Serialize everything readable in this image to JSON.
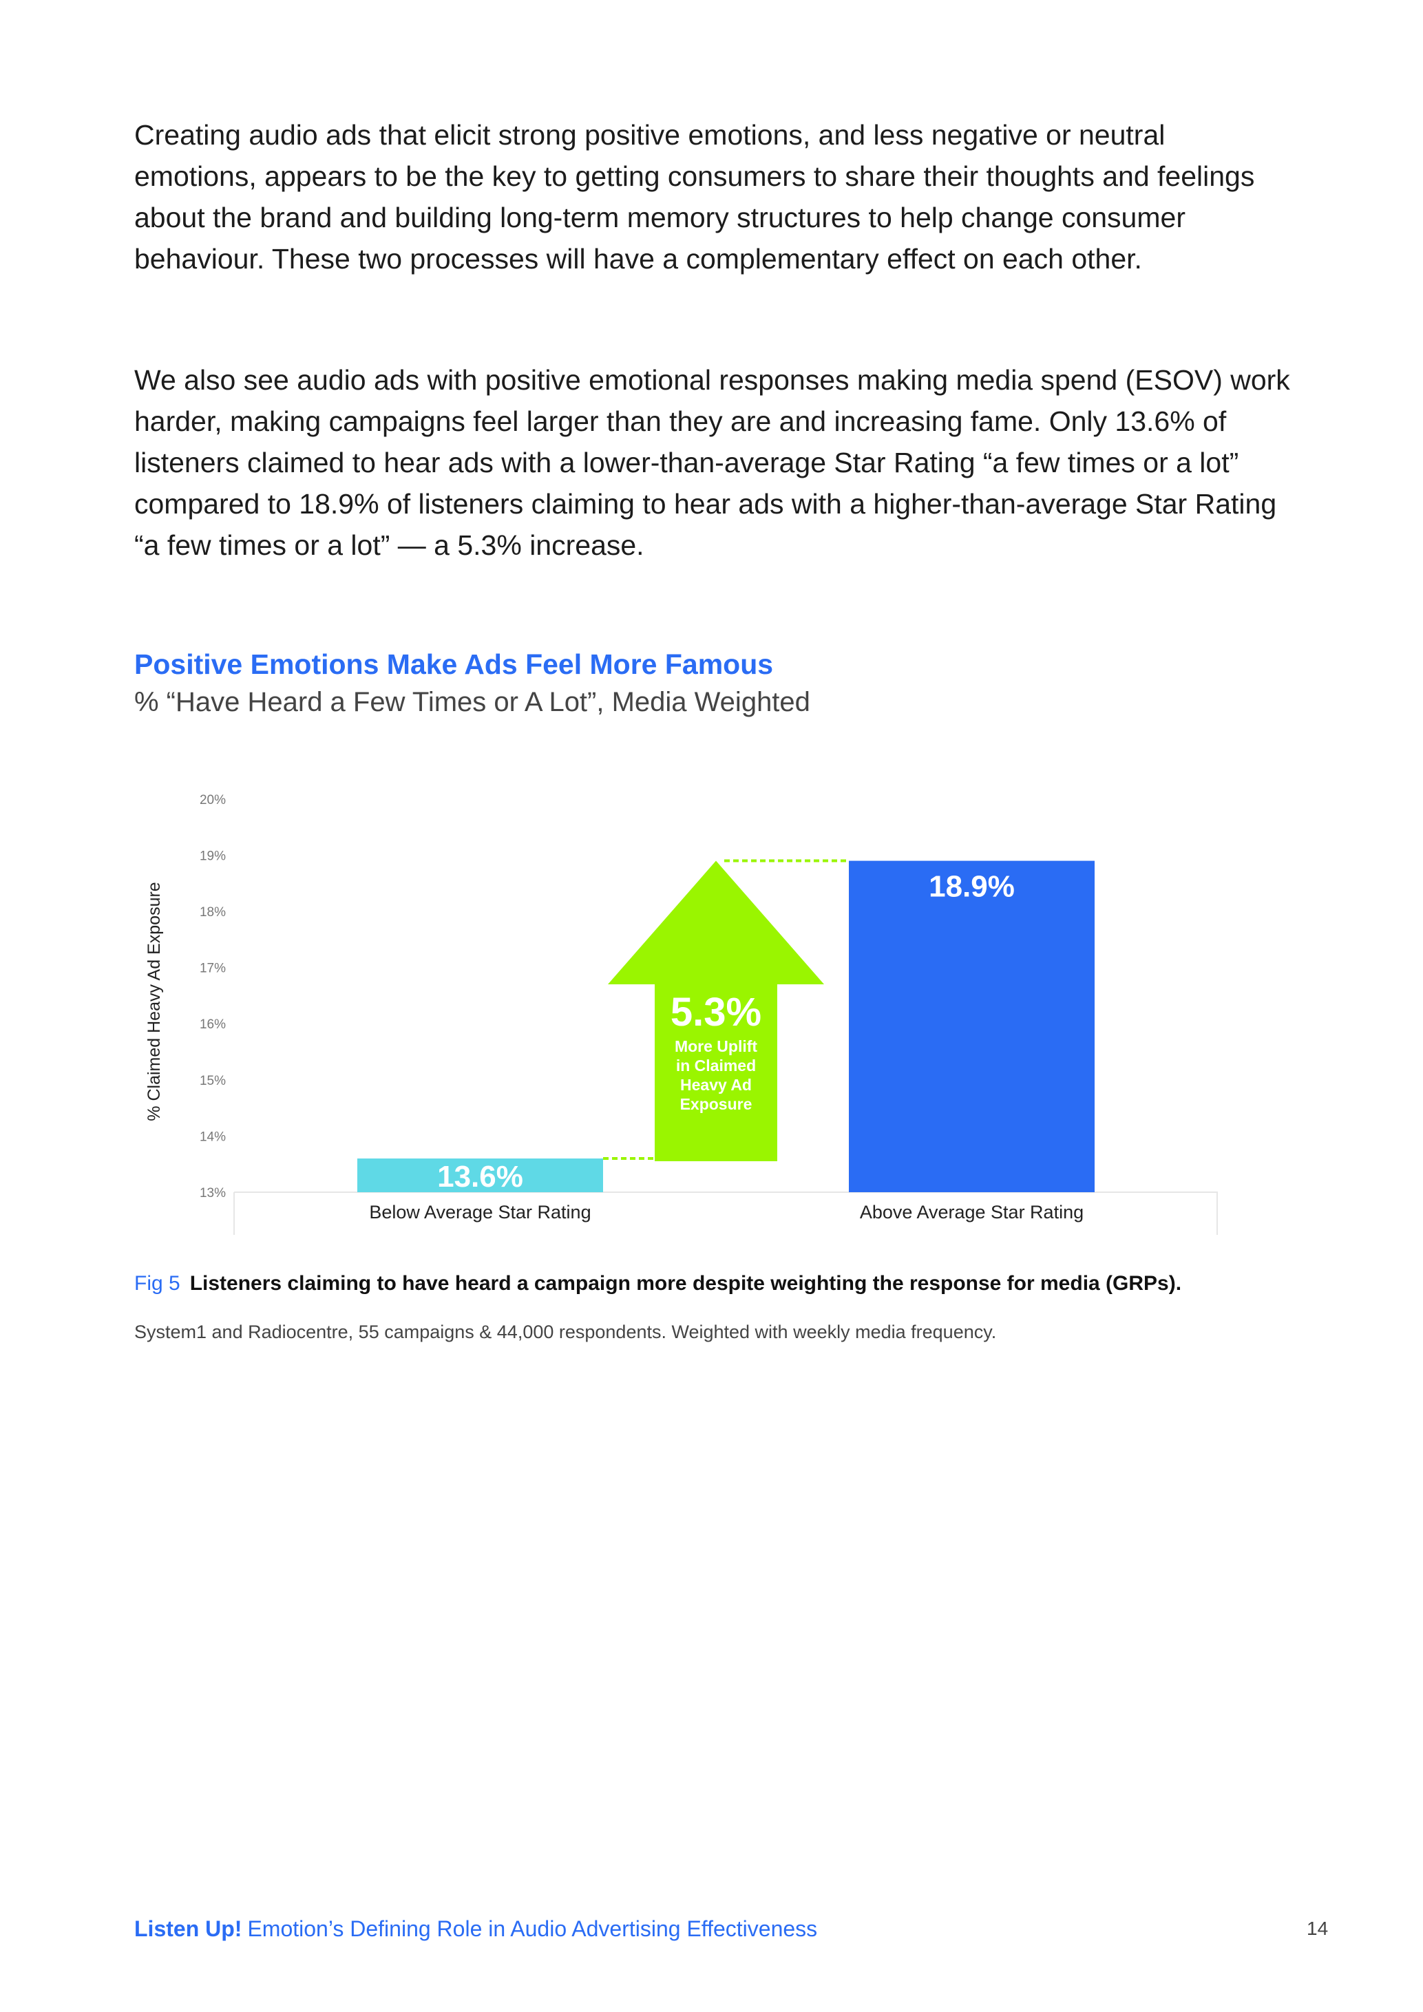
{
  "body": {
    "paragraph1": "Creating audio ads that elicit strong positive emotions, and less negative or neutral emotions, appears to be the key to getting consumers to share their thoughts and feelings about the brand and building long-term memory structures to help change consumer behaviour. These two processes will have a complementary effect on each other.",
    "paragraph2": "We also see audio ads with positive emotional responses making media spend (ESOV) work harder, making campaigns feel larger than they are and increasing fame. Only 13.6% of listeners claimed to hear ads with a lower-than-average Star Rating “a few times or a lot” compared to 18.9% of listeners claiming to hear ads with a higher-than-average Star Rating “a few times or a lot” — a 5.3% increase."
  },
  "chart_data": {
    "type": "bar",
    "title": "Positive Emotions Make Ads Feel More Famous",
    "subtitle": "% “Have Heard a Few Times or A Lot”, Media Weighted",
    "ylabel": "% Claimed Heavy Ad Exposure",
    "ylim": [
      13,
      20
    ],
    "yticks": [
      "13%",
      "14%",
      "15%",
      "16%",
      "17%",
      "18%",
      "19%",
      "20%"
    ],
    "categories": [
      "Below Average Star Rating",
      "Above Average Star Rating"
    ],
    "values": [
      13.6,
      18.9
    ],
    "data_labels": [
      "13.6%",
      "18.9%"
    ],
    "colors": [
      "#5fd9e6",
      "#2a6cf4"
    ],
    "annotation": {
      "value": "5.3%",
      "text": [
        "More Uplift",
        "in Claimed",
        "Heavy Ad",
        "Exposure"
      ],
      "color": "#9af500",
      "from": 13.6,
      "to": 18.9
    },
    "grid": false
  },
  "figure": {
    "number": "Fig 5",
    "caption": "Listeners claiming to have heard a campaign more despite weighting the response for media (GRPs).",
    "source": "System1 and Radiocentre, 55 campaigns & 44,000 respondents. Weighted with weekly media frequency."
  },
  "footer": {
    "brand": "Listen Up!",
    "title": "Emotion’s Defining Role in Audio Advertising Effectiveness",
    "page": "14"
  }
}
